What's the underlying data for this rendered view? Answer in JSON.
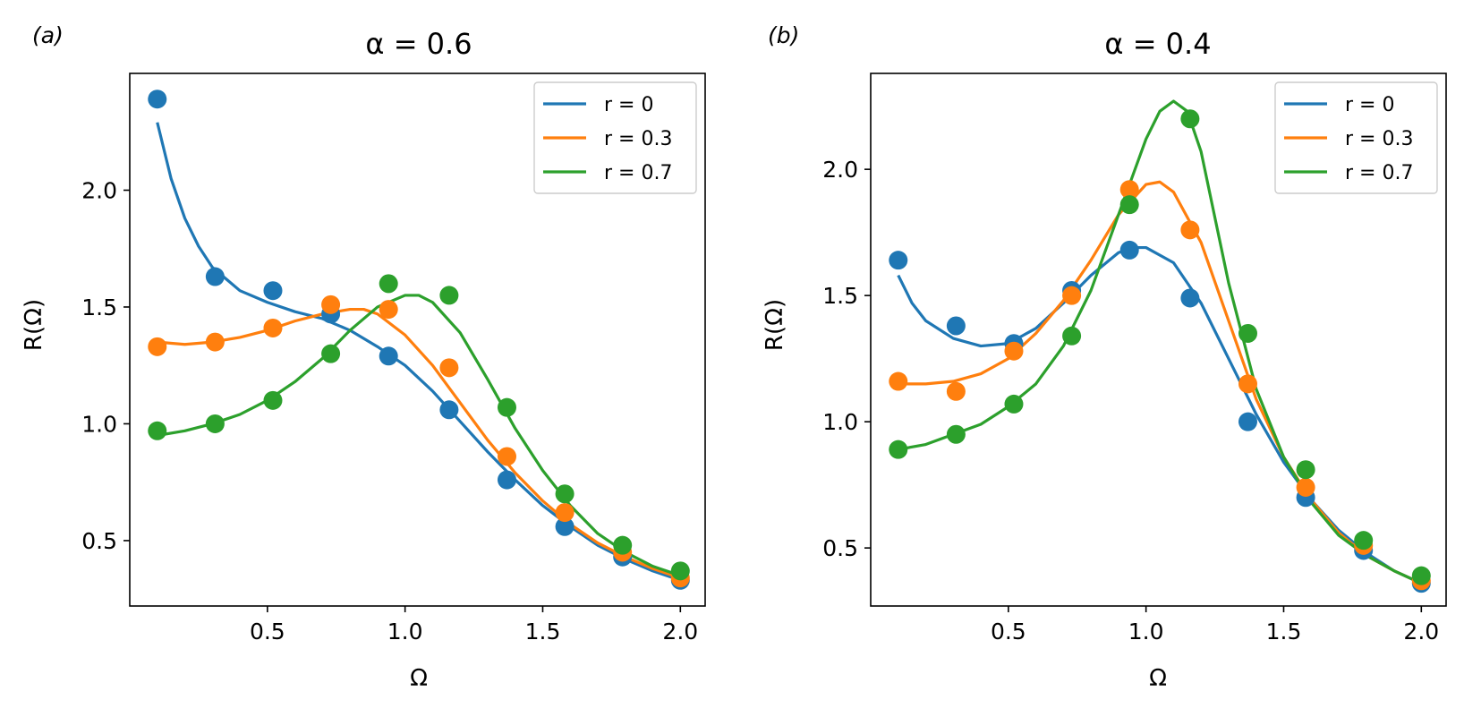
{
  "chart_data": [
    {
      "type": "line",
      "panel_label": "(a)",
      "title": "α = 0.6",
      "xlabel": "Ω",
      "ylabel": "R(Ω)",
      "xlim": [
        0.0,
        2.09
      ],
      "ylim": [
        0.22,
        2.5
      ],
      "xticks": [
        0.5,
        1.0,
        1.5,
        2.0
      ],
      "yticks": [
        0.5,
        1.0,
        1.5,
        2.0
      ],
      "xtick_labels": [
        "0.5",
        "1.0",
        "1.5",
        "2.0"
      ],
      "ytick_labels": [
        "0.5",
        "1.0",
        "1.5",
        "2.0"
      ],
      "grid": false,
      "legend_position": "top-right",
      "series": [
        {
          "name": "r = 0",
          "color": "#1f77b4",
          "points_x": [
            0.1,
            0.31,
            0.52,
            0.73,
            0.94,
            1.16,
            1.37,
            1.58,
            1.79,
            2.0
          ],
          "points_y": [
            2.39,
            1.63,
            1.57,
            1.47,
            1.29,
            1.06,
            0.76,
            0.56,
            0.43,
            0.33
          ],
          "curve_x": [
            0.1,
            0.15,
            0.2,
            0.25,
            0.3,
            0.4,
            0.5,
            0.6,
            0.7,
            0.8,
            0.9,
            1.0,
            1.1,
            1.2,
            1.3,
            1.4,
            1.5,
            1.6,
            1.7,
            1.8,
            1.9,
            2.0
          ],
          "curve_y": [
            2.29,
            2.05,
            1.88,
            1.76,
            1.67,
            1.57,
            1.52,
            1.48,
            1.45,
            1.4,
            1.33,
            1.25,
            1.14,
            1.01,
            0.88,
            0.76,
            0.65,
            0.56,
            0.48,
            0.42,
            0.37,
            0.33
          ]
        },
        {
          "name": "r = 0.3",
          "color": "#ff7f0e",
          "points_x": [
            0.1,
            0.31,
            0.52,
            0.73,
            0.94,
            1.16,
            1.37,
            1.58,
            1.79,
            2.0
          ],
          "points_y": [
            1.33,
            1.35,
            1.41,
            1.51,
            1.49,
            1.24,
            0.86,
            0.62,
            0.45,
            0.34
          ],
          "curve_x": [
            0.1,
            0.2,
            0.3,
            0.4,
            0.5,
            0.6,
            0.7,
            0.8,
            0.85,
            0.9,
            1.0,
            1.1,
            1.2,
            1.3,
            1.4,
            1.5,
            1.6,
            1.7,
            1.8,
            1.9,
            2.0
          ],
          "curve_y": [
            1.35,
            1.34,
            1.35,
            1.37,
            1.4,
            1.44,
            1.47,
            1.49,
            1.49,
            1.47,
            1.38,
            1.25,
            1.09,
            0.93,
            0.79,
            0.67,
            0.57,
            0.49,
            0.43,
            0.38,
            0.34
          ]
        },
        {
          "name": "r = 0.7",
          "color": "#2ca02c",
          "points_x": [
            0.1,
            0.31,
            0.52,
            0.73,
            0.94,
            1.16,
            1.37,
            1.58,
            1.79,
            2.0
          ],
          "points_y": [
            0.97,
            1.0,
            1.1,
            1.3,
            1.6,
            1.55,
            1.07,
            0.7,
            0.48,
            0.37
          ],
          "curve_x": [
            0.1,
            0.2,
            0.3,
            0.4,
            0.5,
            0.6,
            0.7,
            0.8,
            0.9,
            1.0,
            1.05,
            1.1,
            1.2,
            1.3,
            1.4,
            1.5,
            1.6,
            1.7,
            1.8,
            1.9,
            2.0
          ],
          "curve_y": [
            0.95,
            0.97,
            1.0,
            1.04,
            1.1,
            1.18,
            1.28,
            1.4,
            1.5,
            1.55,
            1.55,
            1.52,
            1.39,
            1.19,
            0.98,
            0.8,
            0.65,
            0.53,
            0.45,
            0.39,
            0.35
          ]
        }
      ]
    },
    {
      "type": "line",
      "panel_label": "(b)",
      "title": "α = 0.4",
      "xlabel": "Ω",
      "ylabel": "R(Ω)",
      "xlim": [
        0.0,
        2.09
      ],
      "ylim": [
        0.27,
        2.38
      ],
      "xticks": [
        0.5,
        1.0,
        1.5,
        2.0
      ],
      "yticks": [
        0.5,
        1.0,
        1.5,
        2.0
      ],
      "xtick_labels": [
        "0.5",
        "1.0",
        "1.5",
        "2.0"
      ],
      "ytick_labels": [
        "0.5",
        "1.0",
        "1.5",
        "2.0"
      ],
      "grid": false,
      "legend_position": "top-right",
      "series": [
        {
          "name": "r = 0",
          "color": "#1f77b4",
          "points_x": [
            0.1,
            0.31,
            0.52,
            0.73,
            0.94,
            1.16,
            1.37,
            1.58,
            1.79,
            2.0
          ],
          "points_y": [
            1.64,
            1.38,
            1.31,
            1.52,
            1.68,
            1.49,
            1.0,
            0.7,
            0.49,
            0.36
          ],
          "curve_x": [
            0.1,
            0.15,
            0.2,
            0.3,
            0.4,
            0.5,
            0.6,
            0.7,
            0.8,
            0.9,
            0.95,
            1.0,
            1.1,
            1.2,
            1.3,
            1.4,
            1.5,
            1.6,
            1.7,
            1.8,
            1.9,
            2.0
          ],
          "curve_y": [
            1.58,
            1.47,
            1.4,
            1.33,
            1.3,
            1.31,
            1.37,
            1.47,
            1.58,
            1.67,
            1.69,
            1.69,
            1.63,
            1.47,
            1.25,
            1.03,
            0.84,
            0.69,
            0.57,
            0.48,
            0.41,
            0.36
          ]
        },
        {
          "name": "r = 0.3",
          "color": "#ff7f0e",
          "points_x": [
            0.1,
            0.31,
            0.52,
            0.73,
            0.94,
            1.16,
            1.37,
            1.58,
            1.79,
            2.0
          ],
          "points_y": [
            1.16,
            1.12,
            1.28,
            1.5,
            1.92,
            1.76,
            1.15,
            0.74,
            0.51,
            0.37
          ],
          "curve_x": [
            0.1,
            0.2,
            0.3,
            0.4,
            0.5,
            0.6,
            0.7,
            0.8,
            0.9,
            1.0,
            1.05,
            1.1,
            1.2,
            1.3,
            1.4,
            1.5,
            1.6,
            1.7,
            1.8,
            1.9,
            2.0
          ],
          "curve_y": [
            1.15,
            1.15,
            1.16,
            1.19,
            1.25,
            1.35,
            1.48,
            1.64,
            1.82,
            1.94,
            1.95,
            1.91,
            1.71,
            1.4,
            1.09,
            0.86,
            0.69,
            0.56,
            0.47,
            0.41,
            0.36
          ]
        },
        {
          "name": "r = 0.7",
          "color": "#2ca02c",
          "points_x": [
            0.1,
            0.31,
            0.52,
            0.73,
            0.94,
            1.16,
            1.37,
            1.58,
            1.79,
            2.0
          ],
          "points_y": [
            0.89,
            0.95,
            1.07,
            1.34,
            1.86,
            2.2,
            1.35,
            0.81,
            0.53,
            0.39
          ],
          "curve_x": [
            0.1,
            0.2,
            0.3,
            0.4,
            0.5,
            0.6,
            0.7,
            0.8,
            0.9,
            1.0,
            1.05,
            1.1,
            1.15,
            1.2,
            1.3,
            1.4,
            1.5,
            1.6,
            1.7,
            1.8,
            1.9,
            2.0
          ],
          "curve_y": [
            0.89,
            0.91,
            0.95,
            0.99,
            1.06,
            1.15,
            1.3,
            1.52,
            1.82,
            2.12,
            2.23,
            2.27,
            2.23,
            2.07,
            1.55,
            1.13,
            0.86,
            0.68,
            0.55,
            0.47,
            0.41,
            0.36
          ]
        }
      ]
    }
  ]
}
